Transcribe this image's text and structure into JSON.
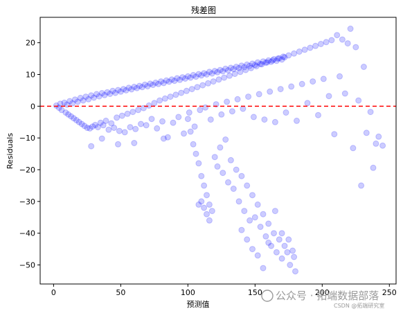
{
  "chart_data": {
    "type": "scatter",
    "title": "残差图",
    "xlabel": "预测值",
    "ylabel": "Residuals",
    "xlim": [
      -10,
      255
    ],
    "ylim": [
      -56,
      28
    ],
    "xticks": [
      0,
      50,
      100,
      150,
      200,
      250
    ],
    "yticks": [
      -50,
      -40,
      -30,
      -20,
      -10,
      0,
      10,
      20
    ],
    "point_color": "#0000ff",
    "point_alpha": 0.2,
    "reference_line": {
      "y": 0,
      "color": "#ff0000",
      "style": "dashed"
    },
    "grid": false,
    "series": [
      {
        "values_description_note": null,
        "points": [
          [
            2,
            0.2
          ],
          [
            4,
            -0.5
          ],
          [
            5,
            0.8
          ],
          [
            6,
            -1.2
          ],
          [
            8,
            1.1
          ],
          [
            9,
            -2.0
          ],
          [
            10,
            0.5
          ],
          [
            11,
            -2.6
          ],
          [
            12,
            1.6
          ],
          [
            13,
            -3.2
          ],
          [
            14,
            0.9
          ],
          [
            15,
            -3.8
          ],
          [
            16,
            2.1
          ],
          [
            17,
            -4.4
          ],
          [
            18,
            1.4
          ],
          [
            19,
            -5.0
          ],
          [
            20,
            2.6
          ],
          [
            21,
            -5.6
          ],
          [
            22,
            1.8
          ],
          [
            23,
            -6.2
          ],
          [
            24,
            3.0
          ],
          [
            25,
            -6.8
          ],
          [
            26,
            2.2
          ],
          [
            27,
            -7.0
          ],
          [
            28,
            3.4
          ],
          [
            29,
            -6.4
          ],
          [
            30,
            2.7
          ],
          [
            31,
            -5.9
          ],
          [
            32,
            3.8
          ],
          [
            33,
            -6.6
          ],
          [
            34,
            3.1
          ],
          [
            35,
            -5.2
          ],
          [
            36,
            4.1
          ],
          [
            37,
            -6.0
          ],
          [
            38,
            3.5
          ],
          [
            39,
            -4.6
          ],
          [
            40,
            4.4
          ],
          [
            41,
            -7.4
          ],
          [
            42,
            3.9
          ],
          [
            43,
            -5.4
          ],
          [
            44,
            4.8
          ],
          [
            45,
            -6.8
          ],
          [
            46,
            4.2
          ],
          [
            47,
            -3.6
          ],
          [
            48,
            5.1
          ],
          [
            49,
            -7.8
          ],
          [
            50,
            4.6
          ],
          [
            51,
            -3.0
          ],
          [
            52,
            5.4
          ],
          [
            53,
            -8.2
          ],
          [
            54,
            5.0
          ],
          [
            55,
            -2.4
          ],
          [
            56,
            5.8
          ],
          [
            57,
            -6.6
          ],
          [
            58,
            5.3
          ],
          [
            59,
            -1.8
          ],
          [
            60,
            6.1
          ],
          [
            61,
            -7.2
          ],
          [
            62,
            5.7
          ],
          [
            63,
            -1.2
          ],
          [
            64,
            6.4
          ],
          [
            65,
            -5.6
          ],
          [
            66,
            6.0
          ],
          [
            67,
            -0.6
          ],
          [
            68,
            6.8
          ],
          [
            69,
            -6.0
          ],
          [
            70,
            6.3
          ],
          [
            71,
            0.2
          ],
          [
            72,
            7.1
          ],
          [
            73,
            -4.0
          ],
          [
            74,
            6.7
          ],
          [
            75,
            1.0
          ],
          [
            76,
            7.4
          ],
          [
            77,
            -7.0
          ],
          [
            78,
            7.0
          ],
          [
            79,
            1.8
          ],
          [
            80,
            7.8
          ],
          [
            81,
            -4.8
          ],
          [
            82,
            7.3
          ],
          [
            83,
            2.4
          ],
          [
            84,
            8.1
          ],
          [
            85,
            -9.8
          ],
          [
            86,
            7.7
          ],
          [
            87,
            3.0
          ],
          [
            88,
            8.4
          ],
          [
            89,
            -5.2
          ],
          [
            90,
            8.0
          ],
          [
            91,
            3.6
          ],
          [
            92,
            8.8
          ],
          [
            93,
            -3.4
          ],
          [
            94,
            8.3
          ],
          [
            95,
            4.2
          ],
          [
            96,
            9.1
          ],
          [
            97,
            -8.6
          ],
          [
            98,
            8.7
          ],
          [
            99,
            4.8
          ],
          [
            100,
            9.4
          ],
          [
            101,
            -2.0
          ],
          [
            102,
            9.0
          ],
          [
            103,
            5.4
          ],
          [
            104,
            9.8
          ],
          [
            105,
            -6.4
          ],
          [
            106,
            9.3
          ],
          [
            107,
            6.0
          ],
          [
            108,
            10.1
          ],
          [
            109,
            -1.2
          ],
          [
            110,
            9.7
          ],
          [
            111,
            6.6
          ],
          [
            112,
            10.4
          ],
          [
            113,
            -0.4
          ],
          [
            114,
            10.0
          ],
          [
            115,
            7.2
          ],
          [
            116,
            10.8
          ],
          [
            117,
            -4.2
          ],
          [
            118,
            10.3
          ],
          [
            119,
            7.8
          ],
          [
            120,
            11.1
          ],
          [
            121,
            0.6
          ],
          [
            122,
            10.7
          ],
          [
            123,
            8.4
          ],
          [
            124,
            11.4
          ],
          [
            125,
            -2.6
          ],
          [
            126,
            11.0
          ],
          [
            127,
            9.0
          ],
          [
            128,
            11.8
          ],
          [
            129,
            1.4
          ],
          [
            130,
            11.3
          ],
          [
            131,
            9.6
          ],
          [
            132,
            12.1
          ],
          [
            133,
            -1.6
          ],
          [
            134,
            11.7
          ],
          [
            135,
            10.2
          ],
          [
            136,
            12.4
          ],
          [
            137,
            2.2
          ],
          [
            138,
            12.0
          ],
          [
            139,
            10.8
          ],
          [
            140,
            12.8
          ],
          [
            141,
            -0.8
          ],
          [
            142,
            12.3
          ],
          [
            143,
            11.4
          ],
          [
            144,
            13.1
          ],
          [
            145,
            3.0
          ],
          [
            146,
            12.7
          ],
          [
            147,
            12.0
          ],
          [
            148,
            13.4
          ],
          [
            149,
            -3.4
          ],
          [
            150,
            13.0
          ],
          [
            151,
            12.6
          ],
          [
            152,
            13.8
          ],
          [
            153,
            3.8
          ],
          [
            154,
            13.3
          ],
          [
            155,
            13.2
          ],
          [
            156,
            14.1
          ],
          [
            157,
            -4.2
          ],
          [
            158,
            13.7
          ],
          [
            159,
            13.8
          ],
          [
            160,
            14.4
          ],
          [
            161,
            4.6
          ],
          [
            162,
            14.0
          ],
          [
            163,
            14.4
          ],
          [
            164,
            14.8
          ],
          [
            165,
            -5.0
          ],
          [
            166,
            14.3
          ],
          [
            167,
            15.0
          ],
          [
            168,
            15.1
          ],
          [
            169,
            5.4
          ],
          [
            170,
            14.7
          ],
          [
            171,
            15.6
          ],
          [
            172,
            15.4
          ],
          [
            173,
            -2.0
          ],
          [
            175,
            16.0
          ],
          [
            177,
            6.2
          ],
          [
            179,
            16.6
          ],
          [
            181,
            -4.6
          ],
          [
            183,
            17.2
          ],
          [
            185,
            7.0
          ],
          [
            187,
            17.8
          ],
          [
            189,
            1.0
          ],
          [
            191,
            18.4
          ],
          [
            193,
            7.8
          ],
          [
            195,
            19.0
          ],
          [
            197,
            -2.8
          ],
          [
            199,
            19.6
          ],
          [
            201,
            8.6
          ],
          [
            203,
            20.2
          ],
          [
            205,
            3.2
          ],
          [
            207,
            20.8
          ],
          [
            209,
            -8.8
          ],
          [
            211,
            22.4
          ],
          [
            213,
            9.4
          ],
          [
            215,
            21.0
          ],
          [
            217,
            4.0
          ],
          [
            219,
            19.8
          ],
          [
            221,
            24.4
          ],
          [
            223,
            -13.2
          ],
          [
            225,
            18.6
          ],
          [
            227,
            1.8
          ],
          [
            229,
            -25.0
          ],
          [
            231,
            12.4
          ],
          [
            233,
            -8.4
          ],
          [
            236,
            -1.8
          ],
          [
            238,
            -19.4
          ],
          [
            240,
            -11.8
          ],
          [
            242,
            -9.6
          ],
          [
            245,
            -12.4
          ],
          [
            28,
            -12.6
          ],
          [
            36,
            -10.2
          ],
          [
            48,
            -12.0
          ],
          [
            60,
            -11.6
          ],
          [
            82,
            -10.2
          ],
          [
            100,
            -4.0
          ],
          [
            102,
            -8.0
          ],
          [
            104,
            -12.0
          ],
          [
            106,
            -15.0
          ],
          [
            108,
            -18.0
          ],
          [
            110,
            -22.0
          ],
          [
            112,
            -25.0
          ],
          [
            114,
            -28.0
          ],
          [
            116,
            -31.0
          ],
          [
            118,
            -33.0
          ],
          [
            120,
            -16.0
          ],
          [
            122,
            -19.0
          ],
          [
            124,
            -13.0
          ],
          [
            126,
            -21.0
          ],
          [
            128,
            -10.5
          ],
          [
            130,
            -24.0
          ],
          [
            132,
            -17.0
          ],
          [
            134,
            -26.0
          ],
          [
            136,
            -20.0
          ],
          [
            138,
            -30.0
          ],
          [
            140,
            -22.0
          ],
          [
            142,
            -33.0
          ],
          [
            144,
            -25.0
          ],
          [
            146,
            -36.0
          ],
          [
            148,
            -28.0
          ],
          [
            150,
            -35.0
          ],
          [
            152,
            -31.0
          ],
          [
            154,
            -38.0
          ],
          [
            156,
            -34.0
          ],
          [
            158,
            -41.0
          ],
          [
            160,
            -37.0
          ],
          [
            162,
            -44.0
          ],
          [
            164,
            -40.0
          ],
          [
            166,
            -46.0
          ],
          [
            168,
            -42.0
          ],
          [
            170,
            -48.0
          ],
          [
            172,
            -44.0
          ],
          [
            174,
            -46.0
          ],
          [
            176,
            -50.0
          ],
          [
            178,
            -45.5
          ],
          [
            180,
            -52.0
          ],
          [
            110,
            -30.0
          ],
          [
            112,
            -32.0
          ],
          [
            108,
            -31.0
          ],
          [
            114,
            -34.0
          ],
          [
            116,
            -36.0
          ],
          [
            140,
            -39.0
          ],
          [
            144,
            -42.0
          ],
          [
            148,
            -45.0
          ],
          [
            152,
            -47.0
          ],
          [
            156,
            -51.0
          ],
          [
            160,
            -43.0
          ],
          [
            165,
            -33.0
          ],
          [
            170,
            -40.0
          ],
          [
            175,
            -42.0
          ],
          [
            179,
            -47.5
          ]
        ]
      }
    ]
  },
  "watermark": {
    "main": "公众号 · 拓端数据部落",
    "sub": "CSDN @拓端研究室"
  }
}
